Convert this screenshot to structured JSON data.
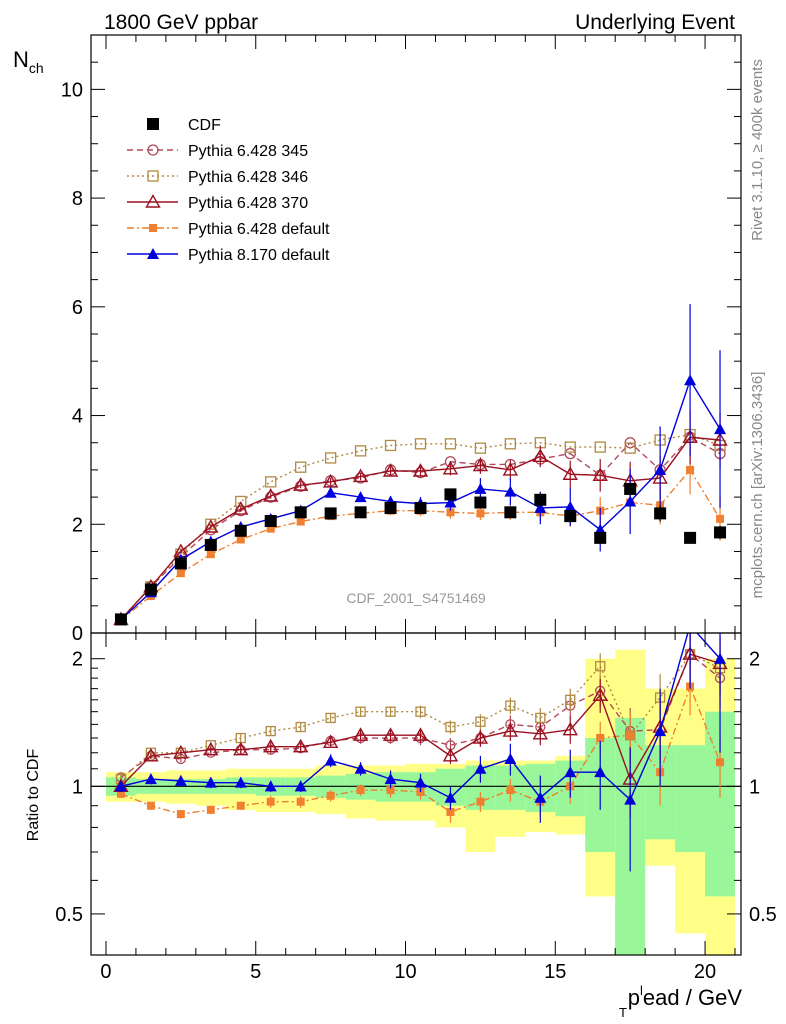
{
  "header": {
    "left": "1800 GeV ppbar",
    "right": "Underlying Event"
  },
  "side_labels": {
    "rivet": "Rivet 3.1.10, ≥ 400k events",
    "source": "mcplots.cern.ch [arXiv:1306.3436]"
  },
  "analysis_id": "CDF_2001_S4751469",
  "colors": {
    "data": "#000000",
    "p345": "#b04a5a",
    "p346": "#b08a40",
    "p370": "#9a1020",
    "p6def": "#f07f30",
    "p8def": "#0000dd",
    "band_inner": "#99f799",
    "band_outer": "#ffff88"
  },
  "chart_data": [
    {
      "type": "scatter",
      "panel": "main",
      "ylabel": "N",
      "ylabel_sub": "ch",
      "ylim": [
        0,
        11
      ],
      "y_ticks": [
        2,
        4,
        6,
        8,
        10
      ],
      "y_tick_labels": [
        "2",
        "4",
        "6",
        "8",
        "10"
      ],
      "legend_position": "top-left",
      "x": [
        0.5,
        1.5,
        2.5,
        3.5,
        4.5,
        5.5,
        6.5,
        7.5,
        8.5,
        9.5,
        10.5,
        11.5,
        12.5,
        13.5,
        14.5,
        15.5,
        16.5,
        17.5,
        18.5,
        19.5,
        20.5
      ],
      "series": [
        {
          "name": "CDF",
          "key": "data",
          "marker": "square-filled",
          "values": [
            0.25,
            0.8,
            1.28,
            1.62,
            1.88,
            2.06,
            2.22,
            2.2,
            2.22,
            2.3,
            2.3,
            2.55,
            2.4,
            2.22,
            2.45,
            2.15,
            1.75,
            2.65,
            2.2,
            1.75,
            1.85
          ]
        },
        {
          "name": "Pythia 6.428 345",
          "key": "p345",
          "marker": "circle-open",
          "line": "dashed",
          "values": [
            0.25,
            0.85,
            1.4,
            1.9,
            2.25,
            2.5,
            2.7,
            2.8,
            2.85,
            3.0,
            2.95,
            3.15,
            3.1,
            3.1,
            3.2,
            3.3,
            2.9,
            3.5,
            3.0,
            3.6,
            3.3
          ]
        },
        {
          "name": "Pythia 6.428 346",
          "key": "p346",
          "marker": "square-open",
          "line": "dotted",
          "values": [
            0.25,
            0.85,
            1.45,
            2.0,
            2.42,
            2.78,
            3.05,
            3.22,
            3.35,
            3.45,
            3.48,
            3.48,
            3.4,
            3.48,
            3.5,
            3.42,
            3.42,
            3.4,
            3.55,
            3.65,
            3.45
          ]
        },
        {
          "name": "Pythia 6.428 370",
          "key": "p370",
          "marker": "triangle-open",
          "line": "solid",
          "values": [
            0.25,
            0.85,
            1.5,
            1.95,
            2.28,
            2.52,
            2.72,
            2.78,
            2.88,
            2.98,
            2.98,
            3.02,
            3.08,
            3.0,
            3.25,
            2.92,
            2.9,
            2.8,
            2.85,
            3.6,
            3.55
          ]
        },
        {
          "name": "Pythia 6.428 default",
          "key": "p6def",
          "marker": "square-filled-small",
          "line": "dashdot",
          "values": [
            0.24,
            0.68,
            1.1,
            1.45,
            1.72,
            1.92,
            2.05,
            2.15,
            2.2,
            2.25,
            2.25,
            2.22,
            2.2,
            2.22,
            2.22,
            2.15,
            2.25,
            2.4,
            2.35,
            3.0,
            2.1
          ]
        },
        {
          "name": "Pythia 8.170 default",
          "key": "p8def",
          "marker": "triangle-filled",
          "line": "solid",
          "values": [
            0.25,
            0.75,
            1.35,
            1.68,
            1.95,
            2.1,
            2.25,
            2.58,
            2.5,
            2.42,
            2.38,
            2.4,
            2.65,
            2.6,
            2.3,
            2.32,
            1.9,
            2.42,
            3.0,
            4.65,
            3.75
          ]
        }
      ]
    },
    {
      "type": "scatter",
      "panel": "ratio",
      "ylabel": "Ratio to CDF",
      "ylim": [
        0.4,
        2.3
      ],
      "log_y": true,
      "y_ticks": [
        0.5,
        1,
        2
      ],
      "y_tick_labels": [
        "0.5",
        "1",
        "2"
      ],
      "xlabel_main": "p",
      "xlabel_sub": "T",
      "xlabel_sup": "l",
      "xlabel_rest": "ead / GeV",
      "xlim": [
        -0.5,
        21.2
      ],
      "x_ticks": [
        0,
        5,
        10,
        15,
        20
      ],
      "x_tick_labels": [
        "0",
        "5",
        "10",
        "15",
        "20"
      ],
      "reference_line": 1,
      "band_inner": [
        [
          0.95,
          1.05
        ],
        [
          0.96,
          1.04
        ],
        [
          0.96,
          1.04
        ],
        [
          0.96,
          1.04
        ],
        [
          0.96,
          1.05
        ],
        [
          0.95,
          1.05
        ],
        [
          0.95,
          1.05
        ],
        [
          0.94,
          1.06
        ],
        [
          0.93,
          1.07
        ],
        [
          0.92,
          1.08
        ],
        [
          0.92,
          1.08
        ],
        [
          0.9,
          1.1
        ],
        [
          0.88,
          1.12
        ],
        [
          0.88,
          1.12
        ],
        [
          0.87,
          1.13
        ],
        [
          0.85,
          1.15
        ],
        [
          0.7,
          1.3
        ],
        [
          0.4,
          1.45
        ],
        [
          0.75,
          1.25
        ],
        [
          0.7,
          1.25
        ],
        [
          0.55,
          1.5
        ]
      ],
      "band_outer": [
        [
          0.92,
          1.08
        ],
        [
          0.92,
          1.08
        ],
        [
          0.91,
          1.09
        ],
        [
          0.9,
          1.09
        ],
        [
          0.88,
          1.1
        ],
        [
          0.87,
          1.1
        ],
        [
          0.87,
          1.1
        ],
        [
          0.86,
          1.12
        ],
        [
          0.84,
          1.12
        ],
        [
          0.83,
          1.12
        ],
        [
          0.83,
          1.13
        ],
        [
          0.8,
          1.13
        ],
        [
          0.7,
          1.15
        ],
        [
          0.76,
          1.15
        ],
        [
          0.78,
          1.15
        ],
        [
          0.77,
          1.18
        ],
        [
          0.55,
          2.0
        ],
        [
          0.4,
          2.1
        ],
        [
          0.65,
          1.7
        ],
        [
          0.45,
          1.7
        ],
        [
          0.4,
          2.0
        ]
      ],
      "series": [
        {
          "key": "p345",
          "values": [
            1.05,
            1.18,
            1.16,
            1.2,
            1.22,
            1.22,
            1.23,
            1.28,
            1.3,
            1.3,
            1.3,
            1.25,
            1.3,
            1.4,
            1.38,
            1.55,
            1.68,
            1.35,
            1.36,
            2.05,
            1.8
          ]
        },
        {
          "key": "p346",
          "values": [
            1.04,
            1.2,
            1.2,
            1.25,
            1.3,
            1.35,
            1.38,
            1.45,
            1.5,
            1.5,
            1.5,
            1.38,
            1.42,
            1.55,
            1.45,
            1.6,
            1.92,
            1.32,
            1.62,
            2.05,
            1.9
          ]
        },
        {
          "key": "p370",
          "values": [
            1.0,
            1.18,
            1.2,
            1.22,
            1.22,
            1.24,
            1.24,
            1.27,
            1.32,
            1.32,
            1.32,
            1.18,
            1.3,
            1.35,
            1.33,
            1.36,
            1.64,
            1.04,
            1.38,
            2.05,
            1.95
          ]
        },
        {
          "key": "p6def",
          "values": [
            0.96,
            0.9,
            0.86,
            0.88,
            0.9,
            0.92,
            0.92,
            0.95,
            0.98,
            0.98,
            0.97,
            0.87,
            0.92,
            0.98,
            0.92,
            1.0,
            1.3,
            1.32,
            1.08,
            1.72,
            1.14
          ]
        },
        {
          "key": "p8def",
          "values": [
            1.0,
            1.04,
            1.03,
            1.02,
            1.02,
            1.0,
            1.0,
            1.15,
            1.1,
            1.04,
            1.02,
            0.94,
            1.1,
            1.16,
            0.94,
            1.08,
            1.08,
            0.93,
            1.35,
            2.4,
            2.0
          ]
        }
      ]
    }
  ]
}
